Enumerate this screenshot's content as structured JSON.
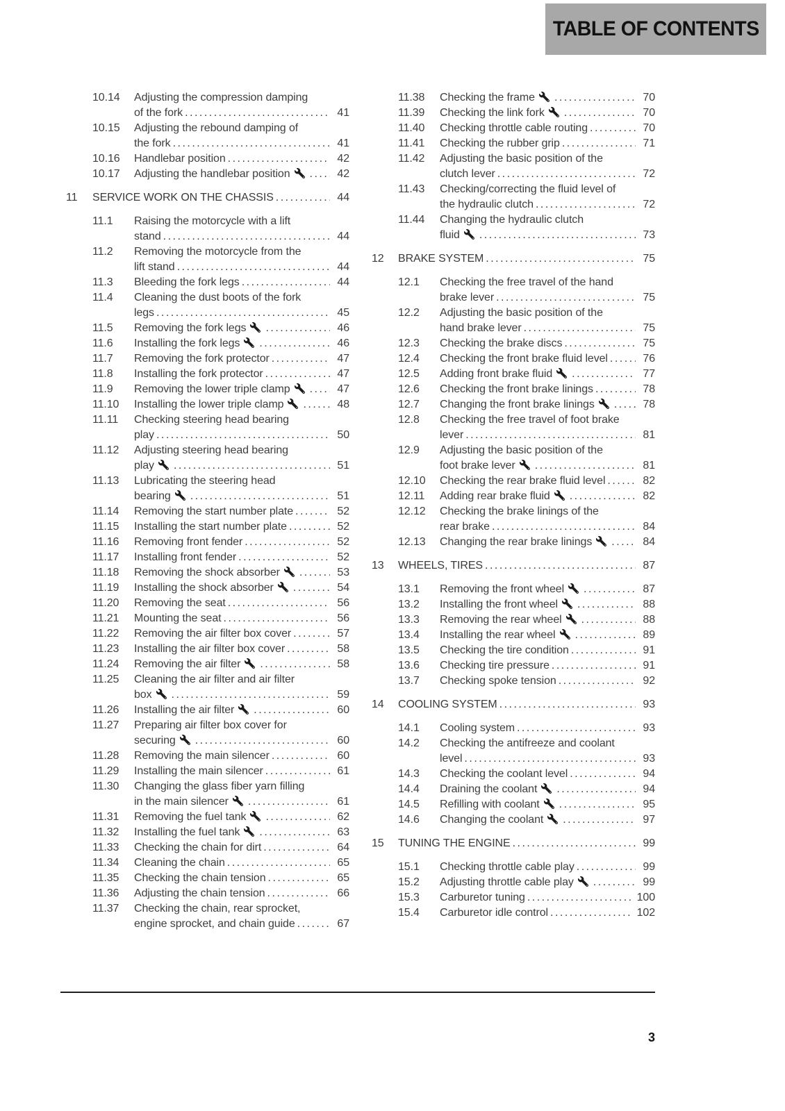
{
  "header": {
    "title": "TABLE OF CONTENTS"
  },
  "footer": {
    "page_number": "3"
  },
  "colors": {
    "band_gray": "#a8a8a8",
    "body_text": "#3e3e3e",
    "heading_text": "#121212"
  },
  "icons": {
    "wrench": "wrench-icon"
  },
  "toc": {
    "columns": [
      {
        "items": [
          {
            "type": "entry",
            "num": "10.14",
            "lines": [
              "Adjusting the compression damping",
              "of the fork"
            ],
            "wrench": false,
            "page": "41"
          },
          {
            "type": "entry",
            "num": "10.15",
            "lines": [
              "Adjusting the rebound damping of",
              "the fork"
            ],
            "wrench": false,
            "page": "41"
          },
          {
            "type": "entry",
            "num": "10.16",
            "lines": [
              "Handlebar position"
            ],
            "wrench": false,
            "page": "42"
          },
          {
            "type": "entry",
            "num": "10.17",
            "lines": [
              "Adjusting the handlebar position"
            ],
            "wrench": true,
            "page": "42"
          },
          {
            "type": "section",
            "num": "11",
            "title": "SERVICE WORK ON THE CHASSIS",
            "page": "44"
          },
          {
            "type": "entry",
            "num": "11.1",
            "lines": [
              "Raising the motorcycle with a lift",
              "stand"
            ],
            "wrench": false,
            "page": "44"
          },
          {
            "type": "entry",
            "num": "11.2",
            "lines": [
              "Removing the motorcycle from the",
              "lift stand"
            ],
            "wrench": false,
            "page": "44"
          },
          {
            "type": "entry",
            "num": "11.3",
            "lines": [
              "Bleeding the fork legs"
            ],
            "wrench": false,
            "page": "44"
          },
          {
            "type": "entry",
            "num": "11.4",
            "lines": [
              "Cleaning the dust boots of the fork",
              "legs"
            ],
            "wrench": false,
            "page": "45"
          },
          {
            "type": "entry",
            "num": "11.5",
            "lines": [
              "Removing the fork legs"
            ],
            "wrench": true,
            "page": "46"
          },
          {
            "type": "entry",
            "num": "11.6",
            "lines": [
              "Installing the fork legs"
            ],
            "wrench": true,
            "page": "46"
          },
          {
            "type": "entry",
            "num": "11.7",
            "lines": [
              "Removing the fork protector"
            ],
            "wrench": false,
            "page": "47"
          },
          {
            "type": "entry",
            "num": "11.8",
            "lines": [
              "Installing the fork protector"
            ],
            "wrench": false,
            "page": "47"
          },
          {
            "type": "entry",
            "num": "11.9",
            "lines": [
              "Removing the lower triple clamp"
            ],
            "wrench": true,
            "page": "47"
          },
          {
            "type": "entry",
            "num": "11.10",
            "lines": [
              "Installing the lower triple clamp"
            ],
            "wrench": true,
            "page": "48"
          },
          {
            "type": "entry",
            "num": "11.11",
            "lines": [
              "Checking steering head bearing",
              "play"
            ],
            "wrench": false,
            "page": "50"
          },
          {
            "type": "entry",
            "num": "11.12",
            "lines": [
              "Adjusting steering head bearing",
              "play"
            ],
            "wrench": true,
            "page": "51"
          },
          {
            "type": "entry",
            "num": "11.13",
            "lines": [
              "Lubricating the steering head",
              "bearing"
            ],
            "wrench": true,
            "page": "51"
          },
          {
            "type": "entry",
            "num": "11.14",
            "lines": [
              "Removing the start number plate"
            ],
            "wrench": false,
            "page": "52"
          },
          {
            "type": "entry",
            "num": "11.15",
            "lines": [
              "Installing the start number plate"
            ],
            "wrench": false,
            "page": "52"
          },
          {
            "type": "entry",
            "num": "11.16",
            "lines": [
              "Removing front fender"
            ],
            "wrench": false,
            "page": "52"
          },
          {
            "type": "entry",
            "num": "11.17",
            "lines": [
              "Installing front fender"
            ],
            "wrench": false,
            "page": "52"
          },
          {
            "type": "entry",
            "num": "11.18",
            "lines": [
              "Removing the shock absorber"
            ],
            "wrench": true,
            "page": "53"
          },
          {
            "type": "entry",
            "num": "11.19",
            "lines": [
              "Installing the shock absorber"
            ],
            "wrench": true,
            "page": "54"
          },
          {
            "type": "entry",
            "num": "11.20",
            "lines": [
              "Removing the seat"
            ],
            "wrench": false,
            "page": "56"
          },
          {
            "type": "entry",
            "num": "11.21",
            "lines": [
              "Mounting the seat"
            ],
            "wrench": false,
            "page": "56"
          },
          {
            "type": "entry",
            "num": "11.22",
            "lines": [
              "Removing the air filter box cover"
            ],
            "wrench": false,
            "page": "57"
          },
          {
            "type": "entry",
            "num": "11.23",
            "lines": [
              "Installing the air filter box cover"
            ],
            "wrench": false,
            "page": "58"
          },
          {
            "type": "entry",
            "num": "11.24",
            "lines": [
              "Removing the air filter"
            ],
            "wrench": true,
            "page": "58"
          },
          {
            "type": "entry",
            "num": "11.25",
            "lines": [
              "Cleaning the air filter and air filter",
              "box"
            ],
            "wrench": true,
            "page": "59"
          },
          {
            "type": "entry",
            "num": "11.26",
            "lines": [
              "Installing the air filter"
            ],
            "wrench": true,
            "page": "60"
          },
          {
            "type": "entry",
            "num": "11.27",
            "lines": [
              "Preparing air filter box cover for",
              "securing"
            ],
            "wrench": true,
            "page": "60"
          },
          {
            "type": "entry",
            "num": "11.28",
            "lines": [
              "Removing the main silencer"
            ],
            "wrench": false,
            "page": "60"
          },
          {
            "type": "entry",
            "num": "11.29",
            "lines": [
              "Installing the main silencer"
            ],
            "wrench": false,
            "page": "61"
          },
          {
            "type": "entry",
            "num": "11.30",
            "lines": [
              "Changing the glass fiber yarn filling",
              "in the main silencer"
            ],
            "wrench": true,
            "page": "61"
          },
          {
            "type": "entry",
            "num": "11.31",
            "lines": [
              "Removing the fuel tank"
            ],
            "wrench": true,
            "page": "62"
          },
          {
            "type": "entry",
            "num": "11.32",
            "lines": [
              "Installing the fuel tank"
            ],
            "wrench": true,
            "page": "63"
          },
          {
            "type": "entry",
            "num": "11.33",
            "lines": [
              "Checking the chain for dirt"
            ],
            "wrench": false,
            "page": "64"
          },
          {
            "type": "entry",
            "num": "11.34",
            "lines": [
              "Cleaning the chain"
            ],
            "wrench": false,
            "page": "65"
          },
          {
            "type": "entry",
            "num": "11.35",
            "lines": [
              "Checking the chain tension"
            ],
            "wrench": false,
            "page": "65"
          },
          {
            "type": "entry",
            "num": "11.36",
            "lines": [
              "Adjusting the chain tension"
            ],
            "wrench": false,
            "page": "66"
          },
          {
            "type": "entry",
            "num": "11.37",
            "lines": [
              "Checking the chain, rear sprocket,",
              "engine sprocket, and chain guide"
            ],
            "wrench": false,
            "page": "67"
          }
        ]
      },
      {
        "items": [
          {
            "type": "entry",
            "num": "11.38",
            "lines": [
              "Checking the frame"
            ],
            "wrench": true,
            "page": "70"
          },
          {
            "type": "entry",
            "num": "11.39",
            "lines": [
              "Checking the link fork"
            ],
            "wrench": true,
            "page": "70"
          },
          {
            "type": "entry",
            "num": "11.40",
            "lines": [
              "Checking throttle cable routing"
            ],
            "wrench": false,
            "page": "70"
          },
          {
            "type": "entry",
            "num": "11.41",
            "lines": [
              "Checking the rubber grip"
            ],
            "wrench": false,
            "page": "71"
          },
          {
            "type": "entry",
            "num": "11.42",
            "lines": [
              "Adjusting the basic position of the",
              "clutch lever"
            ],
            "wrench": false,
            "page": "72"
          },
          {
            "type": "entry",
            "num": "11.43",
            "lines": [
              "Checking/correcting the fluid level of",
              "the hydraulic clutch"
            ],
            "wrench": false,
            "page": "72"
          },
          {
            "type": "entry",
            "num": "11.44",
            "lines": [
              "Changing the hydraulic clutch",
              "fluid"
            ],
            "wrench": true,
            "page": "73"
          },
          {
            "type": "section",
            "num": "12",
            "title": "BRAKE SYSTEM",
            "page": "75"
          },
          {
            "type": "entry",
            "num": "12.1",
            "lines": [
              "Checking the free travel of the hand",
              "brake lever"
            ],
            "wrench": false,
            "page": "75"
          },
          {
            "type": "entry",
            "num": "12.2",
            "lines": [
              "Adjusting the basic position of the",
              "hand brake lever"
            ],
            "wrench": false,
            "page": "75"
          },
          {
            "type": "entry",
            "num": "12.3",
            "lines": [
              "Checking the brake discs"
            ],
            "wrench": false,
            "page": "75"
          },
          {
            "type": "entry",
            "num": "12.4",
            "lines": [
              "Checking the front brake fluid level"
            ],
            "wrench": false,
            "page": "76"
          },
          {
            "type": "entry",
            "num": "12.5",
            "lines": [
              "Adding front brake fluid"
            ],
            "wrench": true,
            "page": "77"
          },
          {
            "type": "entry",
            "num": "12.6",
            "lines": [
              "Checking the front brake linings"
            ],
            "wrench": false,
            "page": "78"
          },
          {
            "type": "entry",
            "num": "12.7",
            "lines": [
              "Changing the front brake linings"
            ],
            "wrench": true,
            "page": "78"
          },
          {
            "type": "entry",
            "num": "12.8",
            "lines": [
              "Checking the free travel of foot brake",
              "lever"
            ],
            "wrench": false,
            "page": "81"
          },
          {
            "type": "entry",
            "num": "12.9",
            "lines": [
              "Adjusting the basic position of the",
              "foot brake lever"
            ],
            "wrench": true,
            "page": "81"
          },
          {
            "type": "entry",
            "num": "12.10",
            "lines": [
              "Checking the rear brake fluid level"
            ],
            "wrench": false,
            "page": "82"
          },
          {
            "type": "entry",
            "num": "12.11",
            "lines": [
              "Adding rear brake fluid"
            ],
            "wrench": true,
            "page": "82"
          },
          {
            "type": "entry",
            "num": "12.12",
            "lines": [
              "Checking the brake linings of the",
              "rear brake"
            ],
            "wrench": false,
            "page": "84"
          },
          {
            "type": "entry",
            "num": "12.13",
            "lines": [
              "Changing the rear brake linings"
            ],
            "wrench": true,
            "page": "84"
          },
          {
            "type": "section",
            "num": "13",
            "title": "WHEELS, TIRES",
            "page": "87"
          },
          {
            "type": "entry",
            "num": "13.1",
            "lines": [
              "Removing the front wheel"
            ],
            "wrench": true,
            "page": "87"
          },
          {
            "type": "entry",
            "num": "13.2",
            "lines": [
              "Installing the front wheel"
            ],
            "wrench": true,
            "page": "88"
          },
          {
            "type": "entry",
            "num": "13.3",
            "lines": [
              "Removing the rear wheel"
            ],
            "wrench": true,
            "page": "88"
          },
          {
            "type": "entry",
            "num": "13.4",
            "lines": [
              "Installing the rear wheel"
            ],
            "wrench": true,
            "page": "89"
          },
          {
            "type": "entry",
            "num": "13.5",
            "lines": [
              "Checking the tire condition"
            ],
            "wrench": false,
            "page": "91"
          },
          {
            "type": "entry",
            "num": "13.6",
            "lines": [
              "Checking tire pressure"
            ],
            "wrench": false,
            "page": "91"
          },
          {
            "type": "entry",
            "num": "13.7",
            "lines": [
              "Checking spoke tension"
            ],
            "wrench": false,
            "page": "92"
          },
          {
            "type": "section",
            "num": "14",
            "title": "COOLING SYSTEM",
            "page": "93"
          },
          {
            "type": "entry",
            "num": "14.1",
            "lines": [
              "Cooling system"
            ],
            "wrench": false,
            "page": "93"
          },
          {
            "type": "entry",
            "num": "14.2",
            "lines": [
              "Checking the antifreeze and coolant",
              "level"
            ],
            "wrench": false,
            "page": "93"
          },
          {
            "type": "entry",
            "num": "14.3",
            "lines": [
              "Checking the coolant level"
            ],
            "wrench": false,
            "page": "94"
          },
          {
            "type": "entry",
            "num": "14.4",
            "lines": [
              "Draining the coolant"
            ],
            "wrench": true,
            "page": "94"
          },
          {
            "type": "entry",
            "num": "14.5",
            "lines": [
              "Refilling with coolant"
            ],
            "wrench": true,
            "page": "95"
          },
          {
            "type": "entry",
            "num": "14.6",
            "lines": [
              "Changing the coolant"
            ],
            "wrench": true,
            "page": "97"
          },
          {
            "type": "section",
            "num": "15",
            "title": "TUNING THE ENGINE",
            "page": "99"
          },
          {
            "type": "entry",
            "num": "15.1",
            "lines": [
              "Checking throttle cable play"
            ],
            "wrench": false,
            "page": "99"
          },
          {
            "type": "entry",
            "num": "15.2",
            "lines": [
              "Adjusting throttle cable play"
            ],
            "wrench": true,
            "page": "99"
          },
          {
            "type": "entry",
            "num": "15.3",
            "lines": [
              "Carburetor tuning"
            ],
            "wrench": false,
            "page": "100"
          },
          {
            "type": "entry",
            "num": "15.4",
            "lines": [
              "Carburetor idle control"
            ],
            "wrench": false,
            "page": "102"
          }
        ]
      }
    ]
  }
}
